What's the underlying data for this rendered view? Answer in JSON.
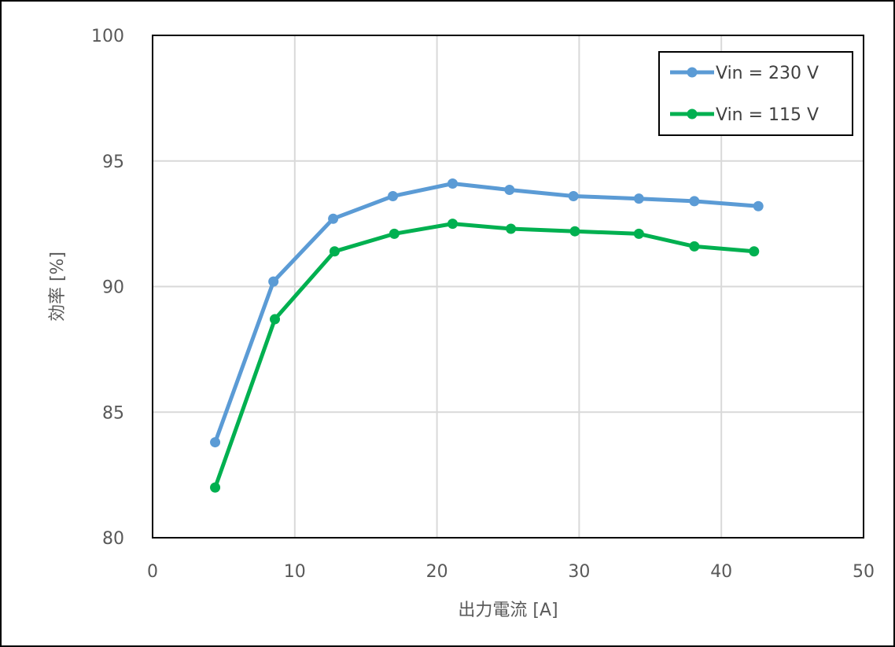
{
  "chart_data": {
    "type": "line",
    "title": "",
    "xlabel": "出力電流 [A]",
    "ylabel": "効率 [%]",
    "xlim": [
      0,
      50
    ],
    "ylim": [
      80,
      100
    ],
    "xticks": [
      0,
      10,
      20,
      30,
      40,
      50
    ],
    "yticks": [
      80,
      85,
      90,
      95,
      100
    ],
    "grid": true,
    "legend_position": "top-right",
    "series": [
      {
        "name": "Vin = 230 V",
        "color": "#5b9bd5",
        "x": [
          4.4,
          8.5,
          12.7,
          16.9,
          21.1,
          25.1,
          29.6,
          34.2,
          38.1,
          42.6
        ],
        "y": [
          83.8,
          90.2,
          92.7,
          93.6,
          94.1,
          93.85,
          93.6,
          93.5,
          93.4,
          93.2
        ]
      },
      {
        "name": "Vin = 115 V",
        "color": "#00b050",
        "x": [
          4.4,
          8.6,
          12.8,
          17.0,
          21.1,
          25.2,
          29.7,
          34.2,
          38.1,
          42.3
        ],
        "y": [
          82.0,
          88.7,
          91.4,
          92.1,
          92.5,
          92.3,
          92.2,
          92.1,
          91.6,
          91.4
        ]
      }
    ]
  }
}
